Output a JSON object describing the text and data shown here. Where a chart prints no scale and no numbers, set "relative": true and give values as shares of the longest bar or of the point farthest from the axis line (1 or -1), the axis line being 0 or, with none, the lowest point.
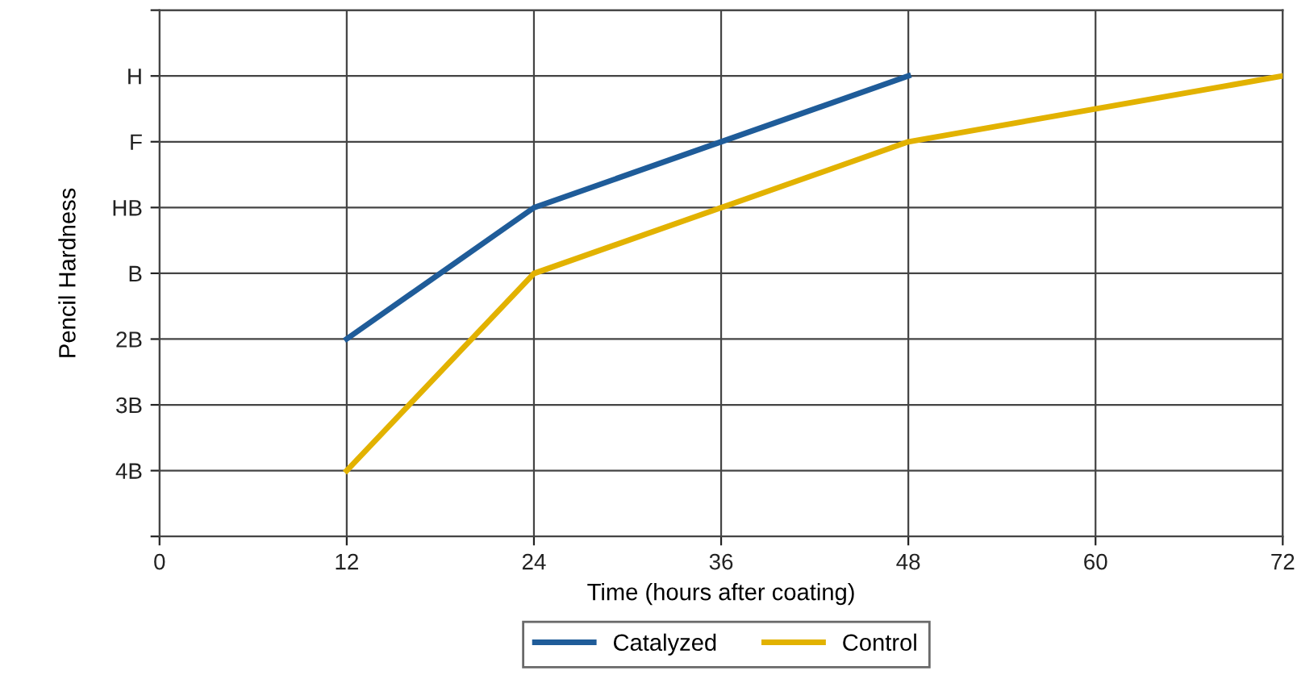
{
  "chart_data": {
    "type": "line",
    "xlabel": "Time (hours after coating)",
    "ylabel": "Pencil Hardness",
    "xlim": [
      0,
      72
    ],
    "xticks": [
      0,
      12,
      24,
      36,
      48,
      60,
      72
    ],
    "relative": true,
    "y_categories": [
      "H",
      "F",
      "HB",
      "B",
      "2B",
      "3B",
      "4B"
    ],
    "grid": true,
    "legend": "bottom",
    "marker": "none",
    "line_style": "solid",
    "series": [
      {
        "name": "Catalyzed",
        "color": "#1f5c99",
        "x": [
          12,
          24,
          48
        ],
        "values": [
          0.429,
          0.714,
          1
        ]
      },
      {
        "name": "Control",
        "color": "#e2b200",
        "x": [
          12,
          24,
          36,
          48,
          72
        ],
        "values": [
          0.143,
          0.571,
          0.714,
          0.857,
          1
        ]
      }
    ]
  }
}
